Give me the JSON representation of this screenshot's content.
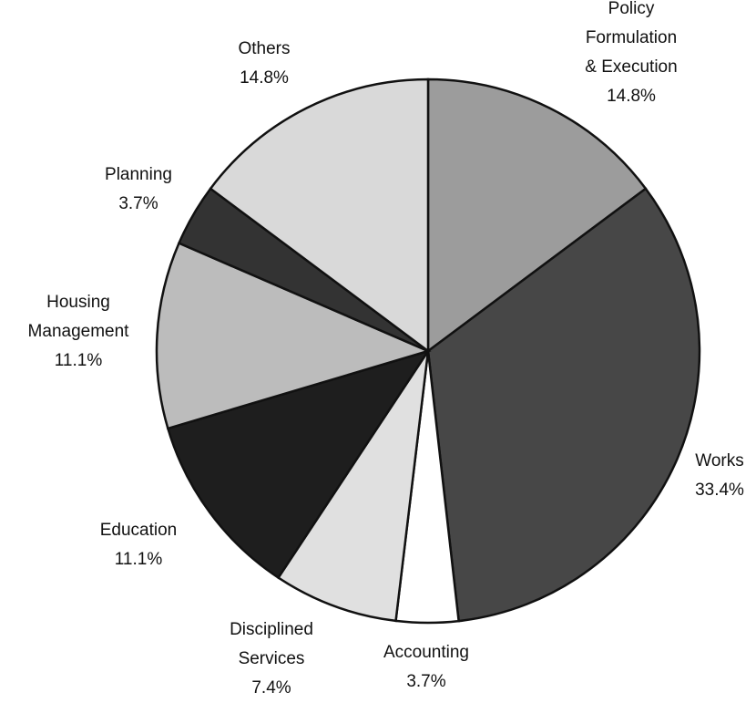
{
  "chart_data": {
    "type": "pie",
    "categories": [
      "Policy Formulation\n& Execution",
      "Works",
      "Accounting",
      "Disciplined\nServices",
      "Education",
      "Housing\nManagement",
      "Planning",
      "Others"
    ],
    "values": [
      14.8,
      33.4,
      3.7,
      7.4,
      11.1,
      11.1,
      3.7,
      14.8
    ],
    "value_labels": [
      "14.8%",
      "33.4%",
      "3.7%",
      "7.4%",
      "11.1%",
      "11.1%",
      "3.7%",
      "14.8%"
    ],
    "colors": [
      "#9c9c9c",
      "#474747",
      "#ffffff",
      "#e0e0e0",
      "#1e1e1e",
      "#bcbcbc",
      "#333333",
      "#d9d9d9"
    ]
  }
}
